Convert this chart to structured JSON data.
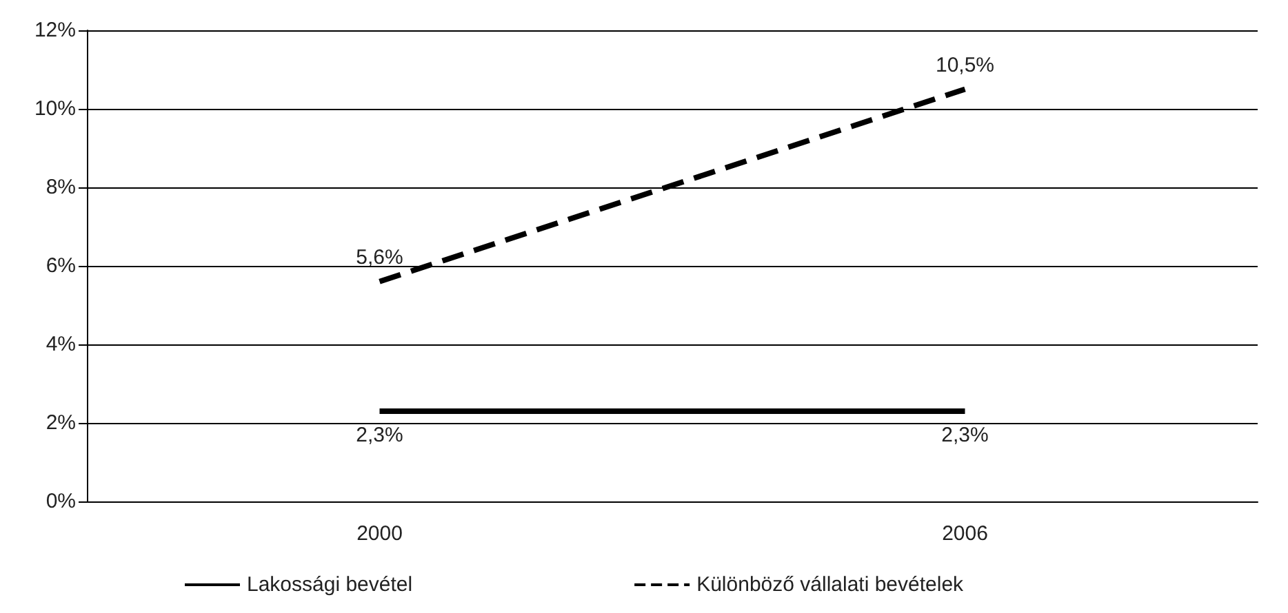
{
  "chart_data": {
    "type": "line",
    "categories": [
      "2000",
      "2006"
    ],
    "series": [
      {
        "name": "Lakossági bevétel",
        "color": "#000000",
        "line_style": "solid",
        "values": [
          2.3,
          2.3
        ],
        "value_labels": [
          "2,3%",
          "2,3%"
        ]
      },
      {
        "name": "Különböző vállalati bevételek",
        "color": "#000000",
        "line_style": "dashed",
        "values": [
          5.6,
          10.5
        ],
        "value_labels": [
          "5,6%",
          "10,5%"
        ]
      }
    ],
    "ylim": [
      0,
      12
    ],
    "yticks": [
      {
        "value": 0,
        "label": "0%"
      },
      {
        "value": 2,
        "label": "2%"
      },
      {
        "value": 4,
        "label": "4%"
      },
      {
        "value": 6,
        "label": "6%"
      },
      {
        "value": 8,
        "label": "8%"
      },
      {
        "value": 10,
        "label": "10%"
      },
      {
        "value": 12,
        "label": "12%"
      }
    ],
    "grid": "y",
    "legend": "bottom",
    "marker": "none"
  }
}
